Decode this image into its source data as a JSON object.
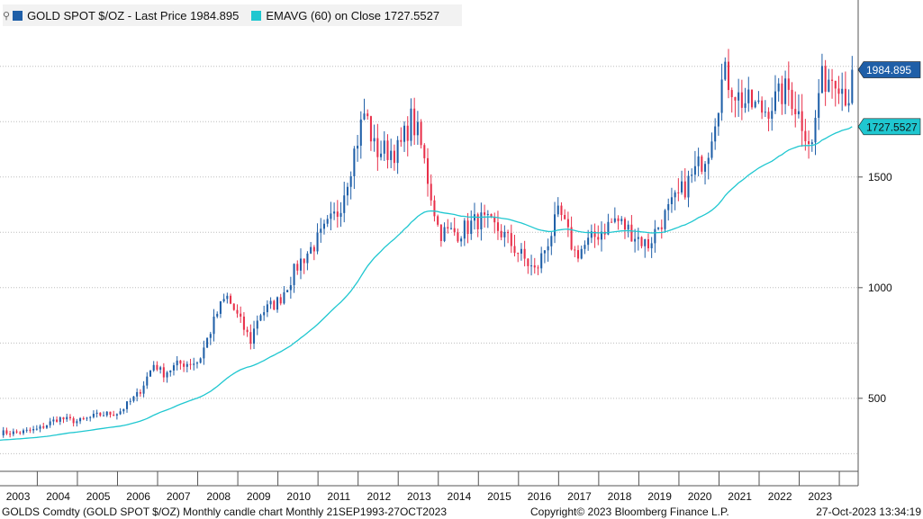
{
  "legend": {
    "series1_label": "GOLD SPOT $/OZ - Last Price 1984.895",
    "series2_label": "EMAVG (60)  on Close 1727.5527",
    "series1_color": "#1f5fa8",
    "series2_color": "#1fc7d0",
    "icon": "chart-settings-icon"
  },
  "footer": {
    "left": "GOLDS Comdty (GOLD SPOT $/OZ) Monthly candle chart  Monthly 21SEP1993-27OCT2023",
    "center": "Copyright© 2023 Bloomberg Finance L.P.",
    "right": "27-Oct-2023 13:34:19"
  },
  "chart_data": {
    "type": "candlestick",
    "title": "GOLD SPOT $/OZ",
    "xlabel": "",
    "ylabel": "",
    "ylim": [
      170,
      2300
    ],
    "yticks": [
      500,
      1000,
      1500
    ],
    "years": [
      "2003",
      "2004",
      "2005",
      "2006",
      "2007",
      "2008",
      "2009",
      "2010",
      "2011",
      "2012",
      "2013",
      "2014",
      "2015",
      "2016",
      "2017",
      "2018",
      "2019",
      "2020",
      "2021",
      "2022",
      "2023"
    ],
    "close_anchors": [
      [
        2003.0,
        345
      ],
      [
        2003.5,
        360
      ],
      [
        2004.0,
        410
      ],
      [
        2004.5,
        395
      ],
      [
        2005.0,
        425
      ],
      [
        2005.5,
        435
      ],
      [
        2006.0,
        520
      ],
      [
        2006.4,
        660
      ],
      [
        2006.6,
        610
      ],
      [
        2007.0,
        655
      ],
      [
        2007.5,
        665
      ],
      [
        2008.0,
        900
      ],
      [
        2008.2,
        960
      ],
      [
        2008.8,
        760
      ],
      [
        2009.0,
        880
      ],
      [
        2009.5,
        940
      ],
      [
        2010.0,
        1110
      ],
      [
        2010.5,
        1220
      ],
      [
        2011.0,
        1350
      ],
      [
        2011.65,
        1800
      ],
      [
        2011.9,
        1620
      ],
      [
        2012.5,
        1620
      ],
      [
        2012.8,
        1760
      ],
      [
        2013.0,
        1680
      ],
      [
        2013.5,
        1250
      ],
      [
        2014.0,
        1250
      ],
      [
        2014.5,
        1310
      ],
      [
        2015.0,
        1260
      ],
      [
        2015.9,
        1070
      ],
      [
        2016.5,
        1340
      ],
      [
        2016.9,
        1150
      ],
      [
        2017.5,
        1250
      ],
      [
        2017.9,
        1310
      ],
      [
        2018.7,
        1190
      ],
      [
        2019.0,
        1290
      ],
      [
        2019.8,
        1500
      ],
      [
        2020.2,
        1620
      ],
      [
        2020.6,
        1970
      ],
      [
        2021.0,
        1850
      ],
      [
        2021.6,
        1800
      ],
      [
        2022.2,
        1900
      ],
      [
        2022.8,
        1640
      ],
      [
        2023.0,
        1930
      ],
      [
        2023.4,
        1970
      ],
      [
        2023.7,
        1850
      ],
      [
        2023.82,
        1984.895
      ]
    ],
    "series": [
      {
        "name": "GOLD SPOT $/OZ",
        "type": "candle",
        "last": 1984.895,
        "up_color": "#1f5fa8",
        "down_color": "#e8304a"
      },
      {
        "name": "EMAVG (60)",
        "type": "line",
        "period": 60,
        "last": 1727.5527,
        "color": "#1fc7d0"
      }
    ],
    "value_tags": [
      {
        "label": "1984.895",
        "value": 1984.895,
        "color": "#1f5fa8"
      },
      {
        "label": "1727.5527",
        "value": 1727.5527,
        "color": "#1fc7d0"
      }
    ],
    "grid": true,
    "legend_position": "top-left"
  }
}
